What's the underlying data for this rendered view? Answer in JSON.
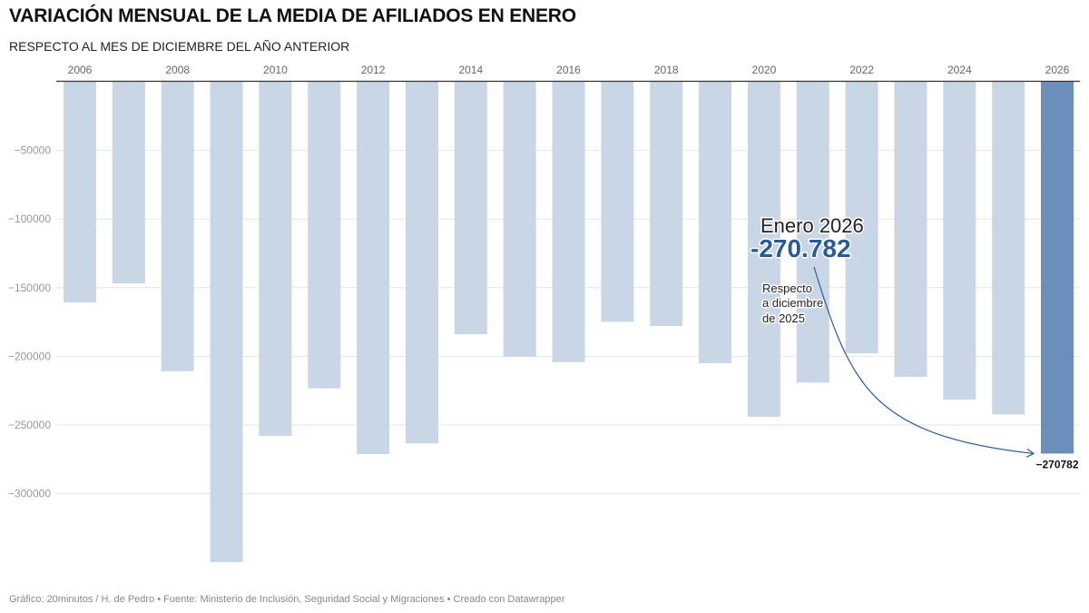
{
  "header": {
    "title": "VARIACIÓN MENSUAL DE LA MEDIA DE AFILIADOS EN ENERO",
    "subtitle": "RESPECTO AL MES DE DICIEMBRE DEL AÑO ANTERIOR"
  },
  "footer": {
    "credit": "Gráfico: 20minutos / H. de Pedro • Fuente: Ministerio de Inclusión, Seguridad Social y Migraciones • Creado con Datawrapper"
  },
  "colors": {
    "bar": "#c9d6e5",
    "highlight_bar": "#6a8fbb",
    "annotation_value": "#2a5a99",
    "arrow": "#2a5a99",
    "grid": "#e6e6e6",
    "axis": "#333333"
  },
  "chart_data": {
    "type": "bar",
    "orientation": "vertical",
    "title": "VARIACIÓN MENSUAL DE LA MEDIA DE AFILIADOS EN ENERO",
    "subtitle": "RESPECTO AL MES DE DICIEMBRE DEL AÑO ANTERIOR",
    "xlabel": "",
    "ylabel": "",
    "categories": [
      "2006",
      "2007",
      "2008",
      "2009",
      "2010",
      "2011",
      "2012",
      "2013",
      "2014",
      "2015",
      "2016",
      "2017",
      "2018",
      "2019",
      "2020",
      "2021",
      "2022",
      "2023",
      "2024",
      "2025",
      "2026"
    ],
    "x_tick_labels": [
      "2006",
      "2008",
      "2010",
      "2012",
      "2014",
      "2016",
      "2018",
      "2020",
      "2022",
      "2024",
      "2026"
    ],
    "x_axis_position": "top",
    "values": [
      -160700,
      -146800,
      -210800,
      -349900,
      -257900,
      -223300,
      -271200,
      -263400,
      -183900,
      -200200,
      -204200,
      -174800,
      -177900,
      -205000,
      -244000,
      -219100,
      -197800,
      -214900,
      -231500,
      -242300,
      -270782
    ],
    "highlight_category": "2026",
    "ylim": [
      -350000,
      0
    ],
    "y_ticks": [
      -50000,
      -100000,
      -150000,
      -200000,
      -250000,
      -300000
    ],
    "y_tick_labels": [
      "−50000",
      "−100000",
      "−150000",
      "−200000",
      "−250000",
      "−300000"
    ],
    "grid": true,
    "legend": "none",
    "data_labels": [
      {
        "category": "2026",
        "text": "−270782"
      }
    ],
    "annotation": {
      "title": "Enero 2026",
      "value": "-270.782",
      "note_lines": [
        "Respecto",
        "a diciembre",
        "de 2025"
      ],
      "target_category": "2026"
    }
  }
}
